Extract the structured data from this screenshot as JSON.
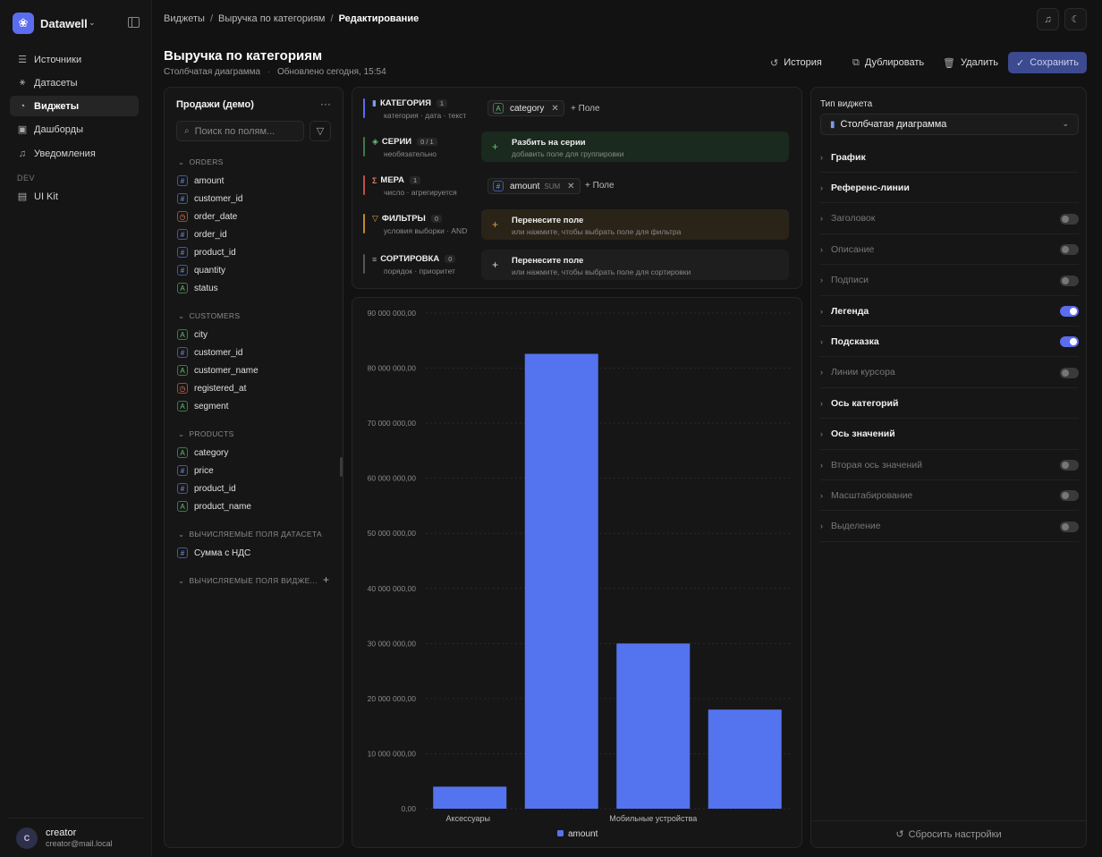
{
  "app": {
    "name": "Datawell"
  },
  "nav": {
    "items": [
      {
        "label": "Источники",
        "icon": "database-icon"
      },
      {
        "label": "Датасеты",
        "icon": "dataset-icon"
      },
      {
        "label": "Виджеты",
        "icon": "widget-icon",
        "active": true
      },
      {
        "label": "Дашборды",
        "icon": "dashboard-icon"
      },
      {
        "label": "Уведомления",
        "icon": "bell-icon"
      }
    ],
    "dev_label": "DEV",
    "dev_items": [
      {
        "label": "UI Kit",
        "icon": "uikit-icon"
      }
    ]
  },
  "user": {
    "initial": "C",
    "name": "creator",
    "email": "creator@mail.local"
  },
  "breadcrumbs": [
    "Виджеты",
    "Выручка по категориям",
    "Редактирование"
  ],
  "page": {
    "title": "Выручка по категориям",
    "subtitle_type": "Столбчатая диаграмма",
    "subtitle_updated": "Обновлено сегодня, 15:54"
  },
  "actions": {
    "history": "История",
    "duplicate": "Дублировать",
    "delete": "Удалить",
    "save": "Сохранить"
  },
  "fields_panel": {
    "title": "Продажи (демо)",
    "search_placeholder": "Поиск по полям...",
    "groups": [
      {
        "name": "ORDERS",
        "fields": [
          {
            "name": "amount",
            "type": "num"
          },
          {
            "name": "customer_id",
            "type": "num"
          },
          {
            "name": "order_date",
            "type": "date"
          },
          {
            "name": "order_id",
            "type": "num"
          },
          {
            "name": "product_id",
            "type": "num"
          },
          {
            "name": "quantity",
            "type": "num"
          },
          {
            "name": "status",
            "type": "str"
          }
        ]
      },
      {
        "name": "CUSTOMERS",
        "fields": [
          {
            "name": "city",
            "type": "str"
          },
          {
            "name": "customer_id",
            "type": "num"
          },
          {
            "name": "customer_name",
            "type": "str"
          },
          {
            "name": "registered_at",
            "type": "date"
          },
          {
            "name": "segment",
            "type": "str"
          }
        ]
      },
      {
        "name": "PRODUCTS",
        "fields": [
          {
            "name": "category",
            "type": "str"
          },
          {
            "name": "price",
            "type": "num"
          },
          {
            "name": "product_id",
            "type": "num"
          },
          {
            "name": "product_name",
            "type": "str"
          }
        ]
      },
      {
        "name": "ВЫЧИСЛЯЕМЫЕ ПОЛЯ ДАТАСЕТА",
        "fields": [
          {
            "name": "Сумма с НДС",
            "type": "num"
          }
        ]
      },
      {
        "name": "ВЫЧИСЛЯЕМЫЕ ПОЛЯ ВИДЖЕ...",
        "fields": []
      }
    ]
  },
  "config": {
    "category": {
      "label": "КАТЕГОРИЯ",
      "count": "1",
      "desc": "категория · дата · текст",
      "chip": "category",
      "add": "Поле"
    },
    "series": {
      "label": "СЕРИИ",
      "count": "0 / 1",
      "desc": "необязательно",
      "drop_title": "Разбить на серии",
      "drop_desc": "добавить поле для группировки"
    },
    "measure": {
      "label": "МЕРА",
      "count": "1",
      "desc": "число · агрегируется",
      "chip": "amount",
      "agg": "SUM",
      "add": "Поле"
    },
    "filters": {
      "label": "ФИЛЬТРЫ",
      "count": "0",
      "desc": "условия выборки · AND",
      "drop_title": "Перенесите поле",
      "drop_desc": "или нажмите, чтобы выбрать поле для фильтра"
    },
    "sort": {
      "label": "СОРТИРОВКА",
      "count": "0",
      "desc": "порядок · приоритет",
      "drop_title": "Перенесите поле",
      "drop_desc": "или нажмите, чтобы выбрать поле для сортировки"
    }
  },
  "colors": {
    "accent": "#5b6cf0",
    "bar": "#5473ee"
  },
  "chart_data": {
    "type": "bar",
    "categories": [
      "Аксессуары",
      "",
      "Мобильные устройства",
      ""
    ],
    "category_labels_shown": [
      "Аксессуары",
      "Мобильные устройства"
    ],
    "series": [
      {
        "name": "amount",
        "values": [
          4000000,
          82600000,
          30000000,
          18000000
        ]
      }
    ],
    "ylim": [
      0,
      90000000
    ],
    "yticks": [
      "0,00",
      "10 000 000,00",
      "20 000 000,00",
      "30 000 000,00",
      "40 000 000,00",
      "50 000 000,00",
      "60 000 000,00",
      "70 000 000,00",
      "80 000 000,00",
      "90 000 000,00"
    ],
    "grid": true,
    "legend": "bottom-center"
  },
  "settings": {
    "type_label": "Тип виджета",
    "type_value": "Столбчатая диаграмма",
    "rows": [
      {
        "label": "График",
        "enabled": true,
        "toggle": null
      },
      {
        "label": "Референс-линии",
        "enabled": true,
        "toggle": null
      },
      {
        "label": "Заголовок",
        "enabled": false,
        "toggle": false
      },
      {
        "label": "Описание",
        "enabled": false,
        "toggle": false
      },
      {
        "label": "Подписи",
        "enabled": false,
        "toggle": false
      },
      {
        "label": "Легенда",
        "enabled": true,
        "toggle": true
      },
      {
        "label": "Подсказка",
        "enabled": true,
        "toggle": true
      },
      {
        "label": "Линии курсора",
        "enabled": false,
        "toggle": false
      },
      {
        "label": "Ось категорий",
        "enabled": true,
        "toggle": null
      },
      {
        "label": "Ось значений",
        "enabled": true,
        "toggle": null
      },
      {
        "label": "Вторая ось значений",
        "enabled": false,
        "toggle": false
      },
      {
        "label": "Масштабирование",
        "enabled": false,
        "toggle": false
      },
      {
        "label": "Выделение",
        "enabled": false,
        "toggle": false
      }
    ],
    "reset": "Сбросить настройки"
  }
}
